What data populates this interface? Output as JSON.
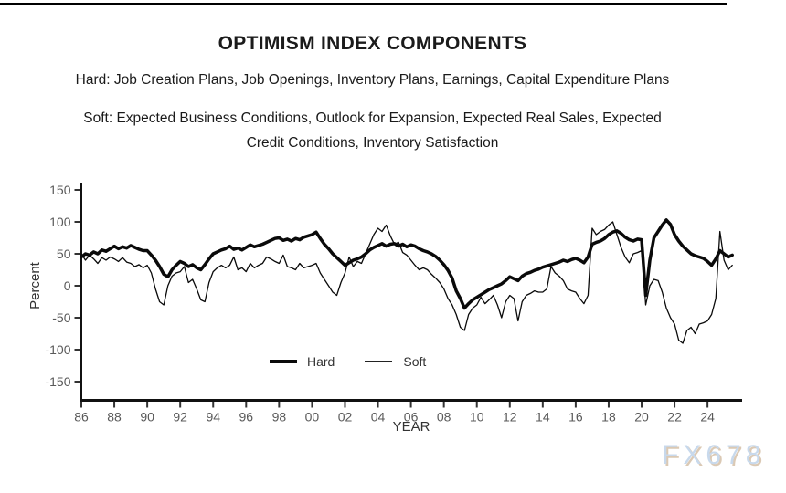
{
  "page": {
    "title": "OPTIMISM INDEX COMPONENTS",
    "subtitle_hard": "Hard: Job Creation Plans, Job Openings, Inventory Plans, Earnings, Capital Expenditure Plans",
    "subtitle_soft_line1": "Soft: Expected Business Conditions, Outlook for Expansion, Expected Real Sales, Expected",
    "subtitle_soft_line2": "Credit Conditions, Inventory Satisfaction",
    "watermark": "FX678"
  },
  "chart_data": {
    "type": "line",
    "title": "OPTIMISM INDEX COMPONENTS",
    "xlabel": "YEAR",
    "ylabel": "Percent",
    "grid": false,
    "legend_position": "bottom-center-inside",
    "ylim": [
      -177,
      162
    ],
    "yticks": [
      150,
      100,
      50,
      0,
      -50,
      -100,
      -150
    ],
    "xtick_years": [
      1986,
      1988,
      1990,
      1992,
      1994,
      1996,
      1998,
      2000,
      2002,
      2004,
      2006,
      2008,
      2010,
      2012,
      2014,
      2016,
      2018,
      2020,
      2022,
      2024
    ],
    "xtick_labels": [
      "86",
      "88",
      "90",
      "92",
      "94",
      "96",
      "98",
      "00",
      "02",
      "04",
      "06",
      "08",
      "10",
      "12",
      "14",
      "16",
      "18",
      "20",
      "22",
      "24"
    ],
    "x_start": 1986,
    "x_step": 0.25,
    "x_end": 2025.5,
    "axis_color": "#111111",
    "line_color": "#0a0a0a",
    "tick_label_color": "#595959",
    "series": [
      {
        "name": "Hard",
        "line_width": 3.5,
        "values": [
          45,
          50,
          48,
          53,
          50,
          56,
          54,
          58,
          62,
          58,
          61,
          59,
          63,
          60,
          57,
          55,
          55,
          48,
          40,
          30,
          18,
          14,
          25,
          32,
          38,
          35,
          30,
          33,
          28,
          25,
          33,
          42,
          50,
          53,
          56,
          58,
          62,
          57,
          59,
          56,
          60,
          64,
          61,
          63,
          65,
          68,
          71,
          74,
          75,
          71,
          73,
          70,
          74,
          72,
          76,
          78,
          80,
          84,
          74,
          65,
          58,
          50,
          44,
          38,
          32,
          36,
          40,
          42,
          45,
          50,
          56,
          60,
          63,
          66,
          62,
          65,
          66,
          62,
          65,
          61,
          64,
          62,
          58,
          55,
          53,
          50,
          46,
          40,
          33,
          24,
          12,
          -8,
          -20,
          -35,
          -28,
          -22,
          -18,
          -14,
          -10,
          -6,
          -3,
          0,
          3,
          8,
          14,
          11,
          8,
          15,
          19,
          21,
          24,
          26,
          29,
          31,
          33,
          35,
          37,
          40,
          38,
          41,
          43,
          40,
          36,
          45,
          65,
          68,
          70,
          74,
          80,
          84,
          86,
          82,
          76,
          72,
          70,
          73,
          72,
          -15,
          40,
          75,
          85,
          95,
          103,
          96,
          80,
          70,
          62,
          56,
          50,
          47,
          45,
          43,
          38,
          32,
          42,
          55,
          50,
          45,
          48
        ]
      },
      {
        "name": "Soft",
        "line_width": 1.3,
        "values": [
          50,
          40,
          48,
          42,
          35,
          44,
          40,
          45,
          42,
          38,
          44,
          37,
          35,
          30,
          33,
          28,
          32,
          20,
          -5,
          -25,
          -30,
          0,
          15,
          20,
          22,
          30,
          5,
          10,
          -5,
          -22,
          -25,
          5,
          22,
          28,
          32,
          28,
          32,
          45,
          25,
          28,
          22,
          35,
          28,
          32,
          35,
          45,
          42,
          38,
          35,
          48,
          30,
          28,
          25,
          35,
          28,
          30,
          32,
          35,
          20,
          10,
          0,
          -10,
          -15,
          5,
          20,
          45,
          30,
          38,
          35,
          50,
          65,
          80,
          90,
          85,
          95,
          78,
          65,
          68,
          52,
          48,
          40,
          32,
          25,
          28,
          25,
          18,
          12,
          5,
          -5,
          -20,
          -30,
          -45,
          -65,
          -70,
          -45,
          -35,
          -30,
          -18,
          -28,
          -22,
          -15,
          -30,
          -50,
          -25,
          -15,
          -20,
          -55,
          -25,
          -15,
          -12,
          -8,
          -10,
          -10,
          -5,
          30,
          20,
          15,
          8,
          -5,
          -8,
          -10,
          -20,
          -28,
          -15,
          90,
          80,
          85,
          88,
          95,
          100,
          80,
          60,
          45,
          36,
          50,
          52,
          55,
          -30,
          0,
          10,
          8,
          -10,
          -35,
          -50,
          -60,
          -85,
          -90,
          -70,
          -65,
          -75,
          -60,
          -58,
          -55,
          -45,
          -20,
          85,
          40,
          25,
          32
        ]
      }
    ]
  }
}
